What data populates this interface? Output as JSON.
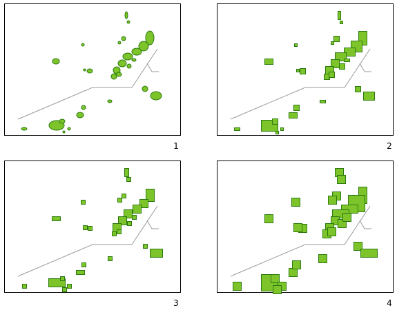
{
  "panels": [
    {
      "label": "1"
    },
    {
      "label": "2"
    },
    {
      "label": "3"
    },
    {
      "label": "4"
    }
  ]
}
